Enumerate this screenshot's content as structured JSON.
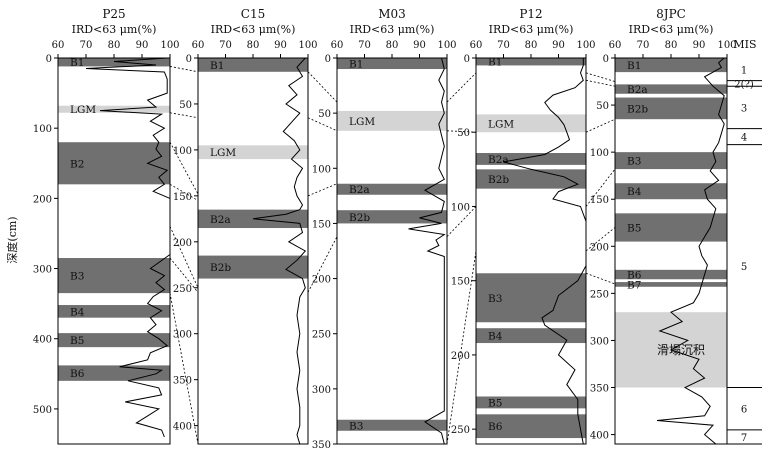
{
  "chart_data": [
    {
      "type": "line",
      "title": "P25",
      "xlabel": "IRD<63 μm(%)",
      "ylabel": "深度(cm)",
      "xlim": [
        60,
        100
      ],
      "ylim": [
        0,
        550
      ],
      "xticks": [
        60,
        70,
        80,
        90,
        100
      ],
      "yticks": [
        0,
        100,
        200,
        300,
        400,
        500
      ],
      "series": [
        {
          "depth": [
            0,
            5,
            10,
            15,
            20,
            30,
            40,
            50,
            60,
            70,
            75,
            80,
            90,
            100,
            110,
            120,
            130,
            140,
            150,
            160,
            170,
            180,
            190,
            200,
            220,
            240,
            260,
            280,
            300,
            310,
            320,
            330,
            340,
            350,
            360,
            370,
            380,
            390,
            400,
            410,
            420,
            430,
            440,
            445,
            450,
            460,
            470,
            480,
            490,
            500,
            510,
            520,
            530,
            540
          ],
          "ird": [
            99,
            80,
            95,
            70,
            98,
            99,
            99,
            99,
            92,
            95,
            75,
            97,
            93,
            98,
            94,
            96,
            95,
            97,
            92,
            99,
            96,
            98,
            94,
            100,
            100,
            100,
            100,
            100,
            93,
            98,
            95,
            98,
            94,
            92,
            97,
            93,
            95,
            92,
            96,
            99,
            93,
            92,
            82,
            97,
            95,
            85,
            96,
            97,
            84,
            96,
            92,
            88,
            97,
            98
          ]
        }
      ],
      "bands": [
        {
          "label": "B1",
          "from": 0,
          "to": 12,
          "shade": "dark"
        },
        {
          "label": "LGM",
          "from": 68,
          "to": 78,
          "shade": "light"
        },
        {
          "label": "B2",
          "from": 120,
          "to": 180,
          "shade": "dark"
        },
        {
          "label": "B3",
          "from": 285,
          "to": 335,
          "shade": "dark"
        },
        {
          "label": "B4",
          "from": 352,
          "to": 370,
          "shade": "dark"
        },
        {
          "label": "B5",
          "from": 392,
          "to": 412,
          "shade": "dark"
        },
        {
          "label": "B6",
          "from": 438,
          "to": 460,
          "shade": "dark"
        }
      ]
    },
    {
      "type": "line",
      "title": "C15",
      "xlabel": "IRD<63 μm(%)",
      "xlim": [
        60,
        100
      ],
      "ylim": [
        0,
        420
      ],
      "xticks": [
        60,
        70,
        80,
        90,
        100
      ],
      "yticks": [
        0,
        50,
        100,
        150,
        200,
        250,
        300,
        350,
        400
      ],
      "series": [
        {
          "depth": [
            0,
            10,
            20,
            30,
            40,
            50,
            60,
            70,
            80,
            90,
            100,
            110,
            120,
            130,
            140,
            150,
            160,
            165,
            170,
            175,
            180,
            190,
            200,
            210,
            220,
            230,
            240,
            250,
            260,
            280,
            300,
            320,
            340,
            360,
            380,
            400,
            410,
            420
          ],
          "ird": [
            99,
            96,
            98,
            93,
            96,
            92,
            97,
            94,
            91,
            95,
            97,
            94,
            98,
            96,
            95,
            96,
            98,
            97,
            92,
            80,
            97,
            98,
            93,
            99,
            96,
            92,
            98,
            99,
            97,
            96,
            97,
            96,
            97,
            96,
            97,
            97,
            96,
            97
          ]
        }
      ],
      "bands": [
        {
          "label": "B1",
          "from": 0,
          "to": 15,
          "shade": "dark"
        },
        {
          "label": "LGM",
          "from": 95,
          "to": 110,
          "shade": "light"
        },
        {
          "label": "B2a",
          "from": 165,
          "to": 185,
          "shade": "dark"
        },
        {
          "label": "B2b",
          "from": 215,
          "to": 240,
          "shade": "dark"
        }
      ]
    },
    {
      "type": "line",
      "title": "M03",
      "xlabel": "IRD<63 μm(%)",
      "xlim": [
        60,
        100
      ],
      "ylim": [
        0,
        350
      ],
      "xticks": [
        60,
        70,
        80,
        90,
        100
      ],
      "yticks": [
        0,
        50,
        100,
        150,
        200,
        250,
        300,
        350
      ],
      "series": [
        {
          "depth": [
            0,
            10,
            20,
            30,
            40,
            50,
            60,
            70,
            80,
            90,
            100,
            110,
            120,
            130,
            140,
            145,
            150,
            155,
            160,
            165,
            170,
            175,
            180,
            200,
            220,
            240,
            260,
            280,
            300,
            320,
            330,
            340,
            350
          ],
          "ird": [
            98,
            99,
            97,
            99,
            98,
            99,
            97,
            98,
            99,
            98,
            97,
            99,
            92,
            99,
            98,
            90,
            98,
            86,
            99,
            96,
            97,
            93,
            99,
            99,
            99,
            99,
            99,
            99,
            99,
            99,
            92,
            98,
            99
          ]
        }
      ],
      "bands": [
        {
          "label": "B1",
          "from": 0,
          "to": 10,
          "shade": "dark"
        },
        {
          "label": "LGM",
          "from": 48,
          "to": 66,
          "shade": "light"
        },
        {
          "label": "B2a",
          "from": 114,
          "to": 124,
          "shade": "dark"
        },
        {
          "label": "B2b",
          "from": 138,
          "to": 150,
          "shade": "dark"
        },
        {
          "label": "B3",
          "from": 328,
          "to": 338,
          "shade": "dark"
        }
      ]
    },
    {
      "type": "line",
      "title": "P12",
      "xlabel": "IRD<63 μm(%)",
      "xlim": [
        60,
        100
      ],
      "ylim": [
        0,
        260
      ],
      "xticks": [
        60,
        70,
        80,
        90,
        100
      ],
      "yticks": [
        0,
        50,
        100,
        150,
        200,
        250
      ],
      "series": [
        {
          "depth": [
            0,
            5,
            10,
            15,
            20,
            25,
            30,
            35,
            40,
            45,
            50,
            55,
            60,
            65,
            70,
            75,
            80,
            85,
            90,
            95,
            100,
            110,
            120,
            130,
            140,
            150,
            160,
            170,
            175,
            180,
            190,
            200,
            210,
            220,
            230,
            240,
            250,
            260
          ],
          "ird": [
            99,
            99,
            98,
            99,
            96,
            88,
            85,
            87,
            90,
            92,
            93,
            94,
            90,
            85,
            70,
            80,
            92,
            97,
            90,
            88,
            98,
            100,
            100,
            100,
            100,
            97,
            90,
            88,
            84,
            85,
            93,
            90,
            96,
            93,
            97,
            97,
            98,
            99
          ]
        }
      ],
      "bands": [
        {
          "label": "B1",
          "from": 0,
          "to": 5,
          "shade": "dark"
        },
        {
          "label": "LGM",
          "from": 38,
          "to": 50,
          "shade": "light"
        },
        {
          "label": "B2a",
          "from": 64,
          "to": 72,
          "shade": "dark"
        },
        {
          "label": "B2b",
          "from": 75,
          "to": 88,
          "shade": "dark"
        },
        {
          "label": "B3",
          "from": 145,
          "to": 178,
          "shade": "dark"
        },
        {
          "label": "B4",
          "from": 182,
          "to": 192,
          "shade": "dark"
        },
        {
          "label": "B5",
          "from": 228,
          "to": 236,
          "shade": "dark"
        },
        {
          "label": "B6",
          "from": 240,
          "to": 256,
          "shade": "dark"
        }
      ]
    },
    {
      "type": "line",
      "title": "8JPC",
      "xlabel": "IRD<63 μm(%)",
      "xlim": [
        60,
        100
      ],
      "ylim": [
        0,
        410
      ],
      "xticks": [
        60,
        70,
        80,
        90,
        100
      ],
      "yticks": [
        0,
        50,
        100,
        150,
        200,
        250,
        300,
        350,
        400
      ],
      "series": [
        {
          "depth": [
            0,
            5,
            10,
            20,
            30,
            40,
            50,
            60,
            70,
            80,
            90,
            100,
            110,
            120,
            130,
            140,
            150,
            160,
            170,
            180,
            190,
            200,
            210,
            220,
            230,
            240,
            250,
            260,
            270,
            280,
            290,
            300,
            310,
            320,
            330,
            340,
            350,
            360,
            370,
            380,
            385,
            390,
            400,
            410
          ],
          "ird": [
            99,
            97,
            98,
            92,
            95,
            99,
            98,
            97,
            99,
            98,
            97,
            95,
            96,
            94,
            97,
            92,
            93,
            96,
            95,
            94,
            92,
            90,
            91,
            93,
            92,
            91,
            90,
            88,
            80,
            84,
            76,
            86,
            80,
            90,
            88,
            92,
            85,
            91,
            94,
            92,
            75,
            95,
            92,
            96
          ]
        }
      ],
      "bands": [
        {
          "label": "B1",
          "from": 0,
          "to": 15,
          "shade": "dark"
        },
        {
          "label": "B2a",
          "from": 28,
          "to": 38,
          "shade": "dark"
        },
        {
          "label": "B2b",
          "from": 42,
          "to": 65,
          "shade": "dark"
        },
        {
          "label": "B3",
          "from": 100,
          "to": 118,
          "shade": "dark"
        },
        {
          "label": "B4",
          "from": 133,
          "to": 150,
          "shade": "dark"
        },
        {
          "label": "B5",
          "from": 165,
          "to": 195,
          "shade": "dark"
        },
        {
          "label": "B6",
          "from": 225,
          "to": 235,
          "shade": "dark"
        },
        {
          "label": "B7",
          "from": 238,
          "to": 243,
          "shade": "dark"
        },
        {
          "label": "滑塌沉积",
          "from": 270,
          "to": 350,
          "shade": "light"
        }
      ],
      "mis": {
        "header": "MIS",
        "stages": [
          {
            "label": "1",
            "from": 0,
            "to": 24
          },
          {
            "label": "2(?)",
            "from": 24,
            "to": 30
          },
          {
            "label": "3",
            "from": 30,
            "to": 75
          },
          {
            "label": "4",
            "from": 75,
            "to": 92
          },
          {
            "label": "5",
            "from": 92,
            "to": 350
          },
          {
            "label": "6",
            "from": 350,
            "to": 395
          },
          {
            "label": "7",
            "from": 395,
            "to": 410
          }
        ]
      }
    }
  ],
  "correlations": [
    {
      "from_panel": 0,
      "to_panel": 1,
      "pairs": [
        [
          12,
          15
        ],
        [
          78,
          65
        ],
        [
          120,
          148
        ],
        [
          180,
          155
        ],
        [
          240,
          250
        ],
        [
          285,
          255
        ],
        [
          335,
          420
        ]
      ]
    },
    {
      "from_panel": 1,
      "to_panel": 2,
      "pairs": [
        [
          15,
          40
        ],
        [
          65,
          66
        ],
        [
          150,
          114
        ],
        [
          255,
          162
        ]
      ]
    },
    {
      "from_panel": 2,
      "to_panel": 3,
      "pairs": [
        [
          40,
          10
        ],
        [
          66,
          50
        ],
        [
          162,
          100
        ],
        [
          350,
          130
        ]
      ]
    },
    {
      "from_panel": 3,
      "to_panel": 4,
      "pairs": [
        [
          10,
          25
        ],
        [
          15,
          30
        ],
        [
          50,
          65
        ],
        [
          100,
          118
        ],
        [
          130,
          180
        ],
        [
          145,
          240
        ]
      ]
    }
  ]
}
